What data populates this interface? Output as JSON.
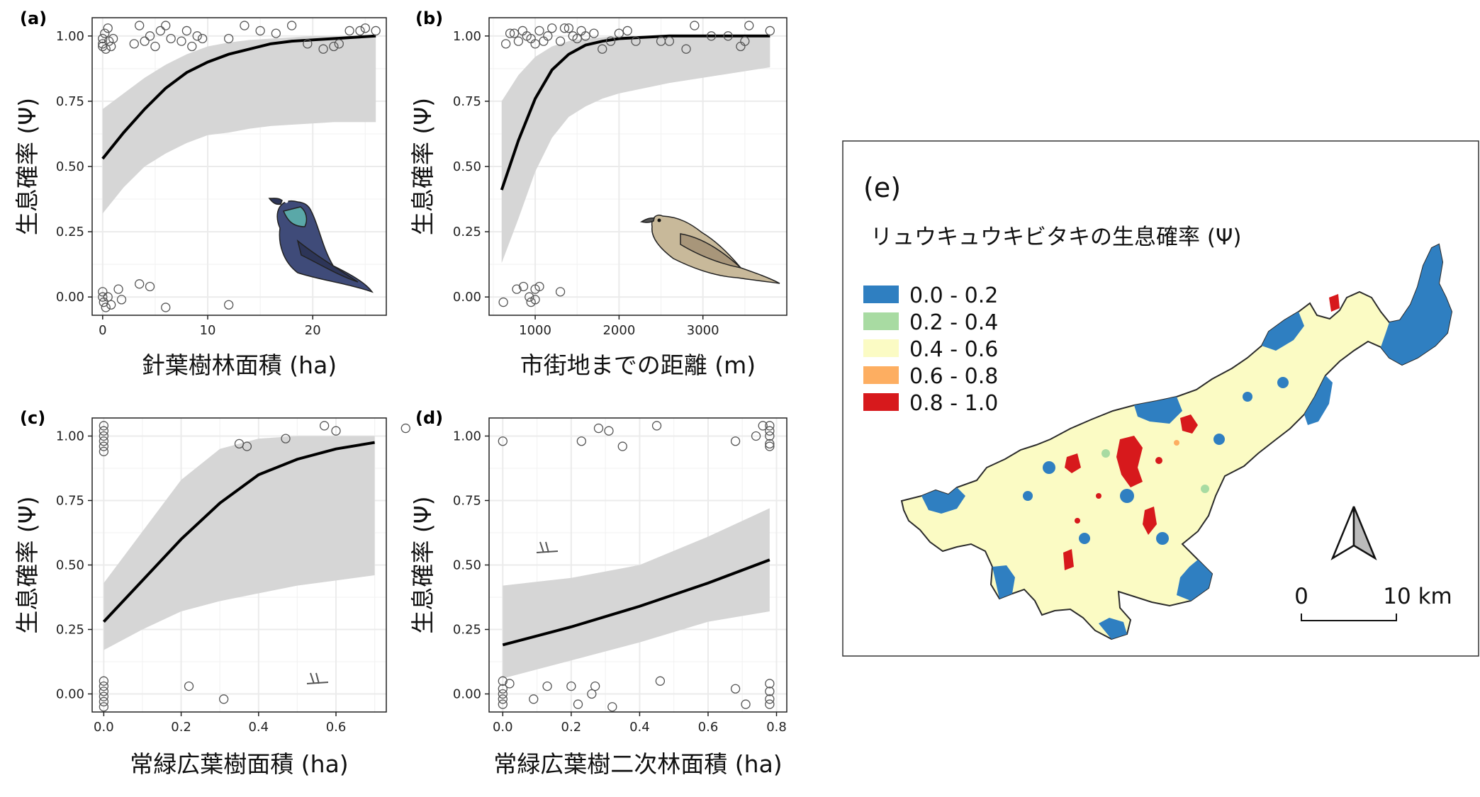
{
  "chart_data": [
    {
      "type": "line",
      "panel_label": "(a)",
      "xlabel": "針葉樹林面積 (ha)",
      "ylabel": "生息確率 (Ψ)",
      "xlim": [
        -1,
        27
      ],
      "ylim": [
        -0.07,
        1.07
      ],
      "x_ticks": [
        0,
        10,
        20
      ],
      "y_ticks": [
        0.0,
        0.25,
        0.5,
        0.75,
        1.0
      ],
      "y_tick_labels": [
        "0.00",
        "0.25",
        "0.50",
        "0.75",
        "1.00"
      ],
      "x_tick_labels": [
        "0",
        "10",
        "20"
      ],
      "fit": {
        "x": [
          0,
          2,
          4,
          6,
          8,
          10,
          12,
          14,
          16,
          18,
          20,
          22,
          24,
          26
        ],
        "y": [
          0.53,
          0.63,
          0.72,
          0.8,
          0.86,
          0.9,
          0.93,
          0.95,
          0.97,
          0.98,
          0.985,
          0.99,
          0.995,
          1.0
        ]
      },
      "ci_lower": [
        0.32,
        0.42,
        0.5,
        0.55,
        0.59,
        0.62,
        0.63,
        0.645,
        0.655,
        0.66,
        0.665,
        0.67,
        0.67,
        0.67
      ],
      "ci_upper": [
        0.72,
        0.78,
        0.84,
        0.89,
        0.93,
        0.96,
        0.975,
        0.985,
        0.99,
        0.995,
        1.0,
        1.0,
        1.0,
        1.0
      ],
      "points": [
        [
          0,
          0.96
        ],
        [
          0,
          0.97
        ],
        [
          0,
          0.99
        ],
        [
          0.2,
          1.01
        ],
        [
          0.3,
          0.95
        ],
        [
          0.5,
          1.03
        ],
        [
          0.6,
          0.98
        ],
        [
          0.8,
          0.96
        ],
        [
          1,
          0.99
        ],
        [
          3,
          0.97
        ],
        [
          3.5,
          1.04
        ],
        [
          4,
          0.98
        ],
        [
          4.5,
          1.0
        ],
        [
          5,
          0.96
        ],
        [
          5.5,
          1.02
        ],
        [
          6,
          1.04
        ],
        [
          6.5,
          0.99
        ],
        [
          7.5,
          0.98
        ],
        [
          8,
          1.02
        ],
        [
          8.5,
          0.96
        ],
        [
          9,
          1.0
        ],
        [
          9.5,
          0.99
        ],
        [
          12,
          0.99
        ],
        [
          13.5,
          1.04
        ],
        [
          15,
          1.02
        ],
        [
          16.5,
          1.01
        ],
        [
          18,
          1.04
        ],
        [
          19.5,
          0.97
        ],
        [
          21,
          0.95
        ],
        [
          22,
          0.96
        ],
        [
          22.5,
          0.97
        ],
        [
          23.5,
          1.02
        ],
        [
          24.5,
          1.02
        ],
        [
          25,
          1.03
        ],
        [
          26,
          1.02
        ],
        [
          0,
          0.02
        ],
        [
          0,
          0.0
        ],
        [
          0.1,
          -0.02
        ],
        [
          0.3,
          -0.04
        ],
        [
          0.5,
          0.0
        ],
        [
          0.8,
          -0.03
        ],
        [
          1.5,
          0.03
        ],
        [
          1.8,
          -0.01
        ],
        [
          3.5,
          0.05
        ],
        [
          4.5,
          0.04
        ],
        [
          6,
          -0.04
        ],
        [
          12,
          -0.03
        ]
      ]
    },
    {
      "type": "line",
      "panel_label": "(b)",
      "xlabel": "市街地までの距離 (m)",
      "ylabel": "生息確率 (Ψ)",
      "xlim": [
        450,
        4000
      ],
      "ylim": [
        -0.07,
        1.07
      ],
      "x_ticks": [
        1000,
        2000,
        3000
      ],
      "x_tick_labels": [
        "1000",
        "2000",
        "3000"
      ],
      "y_ticks": [
        0.0,
        0.25,
        0.5,
        0.75,
        1.0
      ],
      "y_tick_labels": [
        "0.00",
        "0.25",
        "0.50",
        "0.75",
        "1.00"
      ],
      "fit": {
        "x": [
          600,
          800,
          1000,
          1200,
          1400,
          1600,
          1800,
          2000,
          2300,
          2600,
          3000,
          3400,
          3800
        ],
        "y": [
          0.41,
          0.6,
          0.76,
          0.87,
          0.93,
          0.965,
          0.98,
          0.99,
          0.995,
          1.0,
          1.0,
          1.0,
          1.0
        ]
      },
      "ci_lower": [
        0.13,
        0.3,
        0.48,
        0.61,
        0.69,
        0.73,
        0.76,
        0.78,
        0.8,
        0.82,
        0.84,
        0.86,
        0.88
      ],
      "ci_upper": [
        0.75,
        0.85,
        0.92,
        0.96,
        0.98,
        0.99,
        0.995,
        1.0,
        1.0,
        1.0,
        1.0,
        1.0,
        1.0
      ],
      "points": [
        [
          650,
          0.97
        ],
        [
          700,
          1.01
        ],
        [
          750,
          1.01
        ],
        [
          800,
          0.98
        ],
        [
          850,
          1.02
        ],
        [
          900,
          1.0
        ],
        [
          950,
          0.99
        ],
        [
          1000,
          0.97
        ],
        [
          1050,
          1.02
        ],
        [
          1100,
          0.98
        ],
        [
          1150,
          1.0
        ],
        [
          1200,
          1.03
        ],
        [
          1300,
          0.98
        ],
        [
          1350,
          1.03
        ],
        [
          1400,
          1.03
        ],
        [
          1450,
          1.0
        ],
        [
          1500,
          0.99
        ],
        [
          1550,
          1.02
        ],
        [
          1600,
          1.0
        ],
        [
          1700,
          1.01
        ],
        [
          1800,
          0.95
        ],
        [
          1900,
          0.98
        ],
        [
          2000,
          1.01
        ],
        [
          2100,
          1.02
        ],
        [
          2200,
          0.98
        ],
        [
          2500,
          0.98
        ],
        [
          2600,
          0.98
        ],
        [
          2800,
          0.95
        ],
        [
          2900,
          1.04
        ],
        [
          3100,
          1.0
        ],
        [
          3300,
          1.0
        ],
        [
          3450,
          0.96
        ],
        [
          3500,
          0.98
        ],
        [
          3550,
          1.04
        ],
        [
          3800,
          1.02
        ],
        [
          620,
          -0.02
        ],
        [
          780,
          0.03
        ],
        [
          860,
          0.04
        ],
        [
          930,
          0.0
        ],
        [
          950,
          -0.02
        ],
        [
          1000,
          -0.01
        ],
        [
          1050,
          0.04
        ],
        [
          1300,
          0.02
        ],
        [
          1000,
          0.03
        ]
      ]
    },
    {
      "type": "line",
      "panel_label": "(c)",
      "xlabel": "常緑広葉樹面積 (ha)",
      "ylabel": "生息確率 (Ψ)",
      "xlim": [
        -0.03,
        0.73
      ],
      "ylim": [
        -0.07,
        1.07
      ],
      "x_ticks": [
        0.0,
        0.2,
        0.4,
        0.6
      ],
      "x_tick_labels": [
        "0.0",
        "0.2",
        "0.4",
        "0.6"
      ],
      "y_ticks": [
        0.0,
        0.25,
        0.5,
        0.75,
        1.0
      ],
      "y_tick_labels": [
        "0.00",
        "0.25",
        "0.50",
        "0.75",
        "1.00"
      ],
      "fit": {
        "x": [
          0,
          0.1,
          0.2,
          0.3,
          0.4,
          0.5,
          0.6,
          0.7
        ],
        "y": [
          0.28,
          0.44,
          0.6,
          0.74,
          0.85,
          0.91,
          0.95,
          0.975
        ]
      },
      "ci_lower": [
        0.17,
        0.25,
        0.32,
        0.36,
        0.39,
        0.42,
        0.44,
        0.46
      ],
      "ci_upper": [
        0.43,
        0.63,
        0.83,
        0.95,
        0.99,
        1.0,
        1.0,
        1.0
      ],
      "points": [
        [
          0,
          1.04
        ],
        [
          0,
          1.02
        ],
        [
          0,
          1.0
        ],
        [
          0,
          0.98
        ],
        [
          0,
          0.96
        ],
        [
          0,
          0.94
        ],
        [
          0.35,
          0.97
        ],
        [
          0.37,
          0.96
        ],
        [
          0.47,
          0.99
        ],
        [
          0.57,
          1.04
        ],
        [
          0.6,
          1.02
        ],
        [
          0.78,
          1.03
        ],
        [
          0,
          0.05
        ],
        [
          0,
          0.03
        ],
        [
          0,
          0.01
        ],
        [
          0,
          -0.01
        ],
        [
          0,
          -0.03
        ],
        [
          0,
          -0.05
        ],
        [
          0.22,
          0.03
        ],
        [
          0.31,
          -0.02
        ]
      ]
    },
    {
      "type": "line",
      "panel_label": "(d)",
      "xlabel": "常緑広葉樹二次林面積 (ha)",
      "ylabel": "生息確率 (Ψ)",
      "xlim": [
        -0.04,
        0.83
      ],
      "ylim": [
        -0.07,
        1.07
      ],
      "x_ticks": [
        0.0,
        0.2,
        0.4,
        0.6,
        0.8
      ],
      "x_tick_labels": [
        "0.0",
        "0.2",
        "0.4",
        "0.6",
        "0.8"
      ],
      "y_ticks": [
        0.0,
        0.25,
        0.5,
        0.75,
        1.0
      ],
      "y_tick_labels": [
        "0.00",
        "0.25",
        "0.50",
        "0.75",
        "1.00"
      ],
      "fit": {
        "x": [
          0,
          0.2,
          0.4,
          0.6,
          0.78
        ],
        "y": [
          0.19,
          0.26,
          0.34,
          0.43,
          0.52
        ]
      },
      "ci_lower": [
        0.06,
        0.13,
        0.2,
        0.28,
        0.32
      ],
      "ci_upper": [
        0.42,
        0.45,
        0.5,
        0.61,
        0.72
      ],
      "points": [
        [
          0,
          0.98
        ],
        [
          0.23,
          0.98
        ],
        [
          0.28,
          1.03
        ],
        [
          0.31,
          1.02
        ],
        [
          0.35,
          0.96
        ],
        [
          0.45,
          1.04
        ],
        [
          0.68,
          0.98
        ],
        [
          0.74,
          1.0
        ],
        [
          0.76,
          1.04
        ],
        [
          0.78,
          1.04
        ],
        [
          0.78,
          1.02
        ],
        [
          0.78,
          1.0
        ],
        [
          0.78,
          0.97
        ],
        [
          0.78,
          0.96
        ],
        [
          0,
          0.05
        ],
        [
          0,
          0.02
        ],
        [
          0,
          0.0
        ],
        [
          0,
          -0.02
        ],
        [
          0,
          -0.04
        ],
        [
          0.02,
          0.04
        ],
        [
          0.09,
          -0.02
        ],
        [
          0.13,
          0.03
        ],
        [
          0.2,
          0.03
        ],
        [
          0.22,
          -0.04
        ],
        [
          0.26,
          0.0
        ],
        [
          0.27,
          0.03
        ],
        [
          0.32,
          -0.05
        ],
        [
          0.46,
          0.05
        ],
        [
          0.68,
          0.02
        ],
        [
          0.71,
          -0.04
        ],
        [
          0.78,
          0.04
        ],
        [
          0.78,
          0.01
        ],
        [
          0.78,
          -0.02
        ],
        [
          0.78,
          -0.04
        ]
      ]
    }
  ],
  "map": {
    "panel_label": "(e)",
    "title": "リュウキュウキビタキの生息確率 (Ψ)",
    "legend": [
      {
        "label": "0.0 - 0.2",
        "color": "#2f7fc1"
      },
      {
        "label": "0.2 - 0.4",
        "color": "#a8dba2"
      },
      {
        "label": "0.4 - 0.6",
        "color": "#fbfbc4"
      },
      {
        "label": "0.6 - 0.8",
        "color": "#fdae61"
      },
      {
        "label": "0.8 - 1.0",
        "color": "#d7191c"
      }
    ],
    "scale_start": "0",
    "scale_end": "10 km",
    "north_arrow_icon": "north-arrow-icon"
  },
  "colors": {
    "ci": "#d6d6d6",
    "line": "#000000",
    "grid": "#ebebeb",
    "point": "#555555"
  }
}
